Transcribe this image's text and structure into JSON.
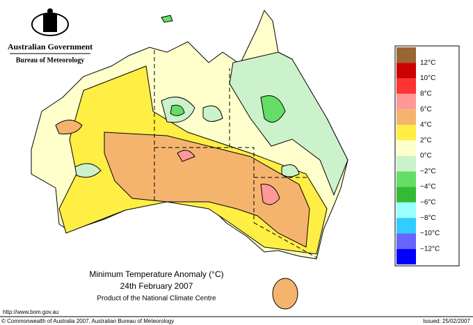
{
  "header": {
    "government": "Australian Government",
    "bureau": "Bureau of Meteorology"
  },
  "map": {
    "title": "Minimum Temperature Anomaly (°C)",
    "date": "24th February 2007",
    "credit": "Product of the National Climate Centre"
  },
  "legend": {
    "colors": [
      "#996633",
      "#cc0000",
      "#ff3333",
      "#ff9999",
      "#f5b46e",
      "#ffee44",
      "#ffffcc",
      "#ccf2cc",
      "#66dd66",
      "#33bb33",
      "#99ffff",
      "#33ccff",
      "#6666ff",
      "#0000ff"
    ],
    "labels": [
      "12°C",
      "10°C",
      "8°C",
      "6°C",
      "4°C",
      "2°C",
      "0°C",
      "−2°C",
      "−4°C",
      "−6°C",
      "−8°C",
      "−10°C",
      "−12°C"
    ]
  },
  "footer": {
    "url": "http://www.bom.gov.au",
    "copyright": "© Commonwealth of Australia 2007, Australian Bureau of Meteorology",
    "issued": "Issued: 25/02/2007"
  }
}
